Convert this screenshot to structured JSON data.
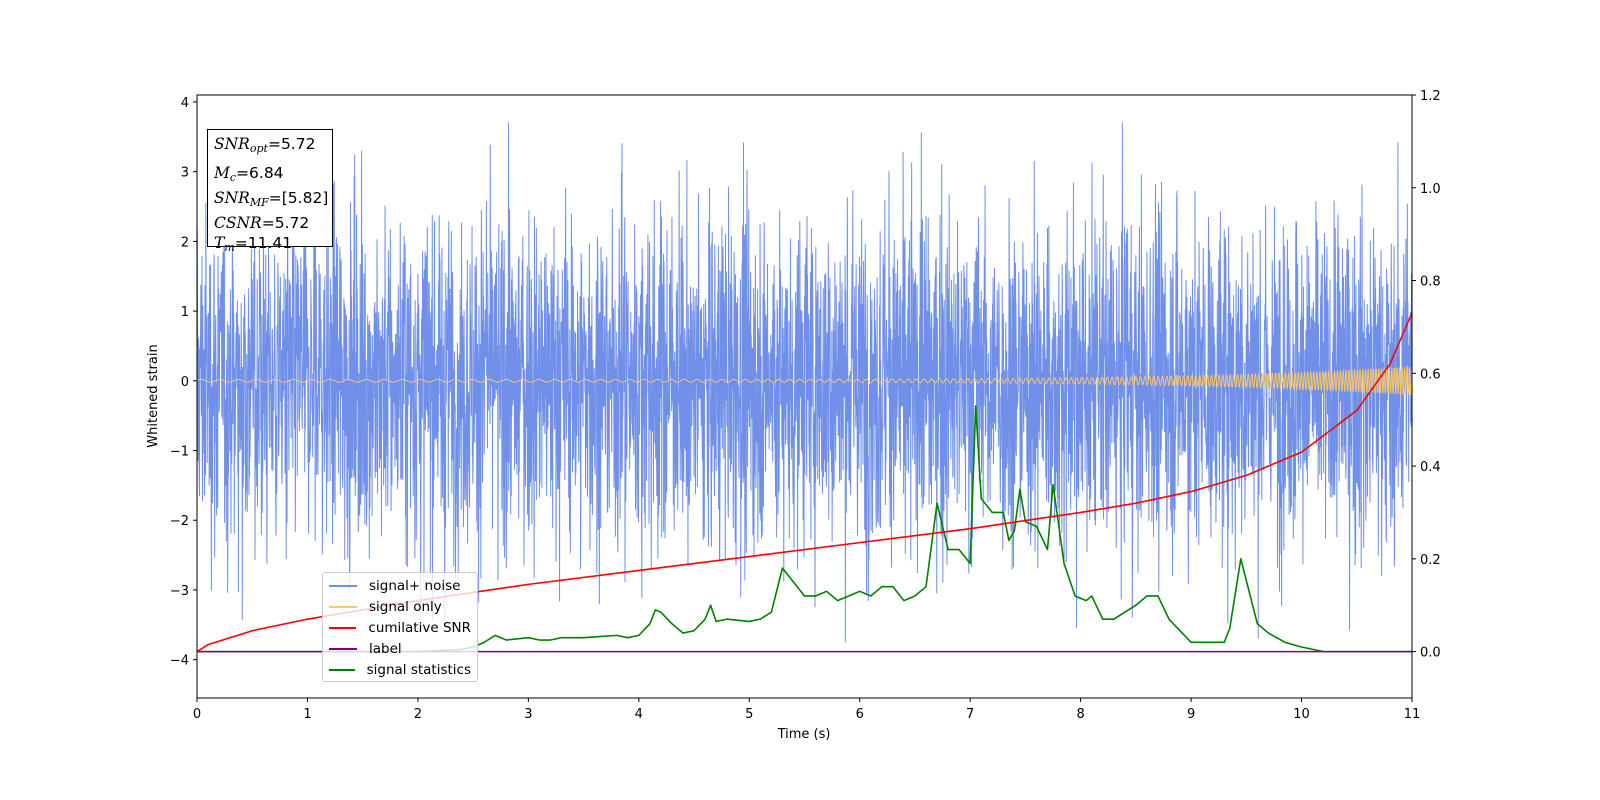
{
  "chart_data": {
    "type": "line",
    "title": "",
    "xlabel": "Time (s)",
    "ylabel": "Whitened strain",
    "xlim": [
      0,
      11
    ],
    "ylim": [
      -4.55,
      4.1
    ],
    "y2lim": [
      -0.1,
      1.2
    ],
    "grid": false,
    "legend_position": "lower-left",
    "x_ticks": [
      "0",
      "1",
      "2",
      "3",
      "4",
      "5",
      "6",
      "7",
      "8",
      "9",
      "10",
      "11"
    ],
    "y_ticks": [
      "4",
      "3",
      "2",
      "1",
      "0",
      "−1",
      "−2",
      "−3",
      "−4"
    ],
    "y_tick_values": [
      4,
      3,
      2,
      1,
      0,
      -1,
      -2,
      -3,
      -4
    ],
    "y2_ticks": [
      "1.2",
      "1.0",
      "0.8",
      "0.6",
      "0.4",
      "0.2",
      "0.0"
    ],
    "y2_tick_values": [
      1.2,
      1.0,
      0.8,
      0.6,
      0.4,
      0.2,
      0.0
    ],
    "annotation": {
      "snr_opt": {
        "label": "SNR",
        "sub": "opt",
        "value": "=5.72"
      },
      "mc": {
        "label": "M",
        "sub": "c",
        "value": "=6.84"
      },
      "snr_mf": {
        "label": "SNR",
        "sub": "MF",
        "value": "=[5.82]"
      },
      "csnr": {
        "label": "CSNR",
        "value": "=5.72"
      },
      "tm": {
        "label": "T",
        "sub": "m",
        "value": "=11.41"
      }
    },
    "series": [
      {
        "name": "signal+ noise",
        "color": "#6f8fe8",
        "axis": "left",
        "kind": "noise",
        "sample_rate_per_s": 400,
        "typical_range": [
          -2.6,
          2.6
        ],
        "extremes": [
          -4.15,
          3.7
        ]
      },
      {
        "name": "signal only",
        "color": "#ffc864",
        "axis": "left",
        "kind": "chirp",
        "amplitude_start": 0.02,
        "amplitude_end": 0.2,
        "freq_start_hz": 6,
        "freq_end_hz": 45
      },
      {
        "name": "cumilative SNR",
        "color": "#ff0000",
        "axis": "right",
        "x": [
          0,
          0.1,
          0.5,
          1,
          2,
          3,
          4,
          5,
          6,
          7,
          8,
          8.5,
          9,
          9.5,
          10,
          10.5,
          10.8,
          11
        ],
        "values": [
          0.0,
          0.015,
          0.045,
          0.07,
          0.11,
          0.145,
          0.175,
          0.205,
          0.235,
          0.265,
          0.3,
          0.32,
          0.345,
          0.38,
          0.43,
          0.52,
          0.62,
          0.73
        ]
      },
      {
        "name": "label",
        "color": "#800080",
        "axis": "right",
        "x": [
          0,
          11
        ],
        "values": [
          0,
          0
        ]
      },
      {
        "name": "signal statistics",
        "color": "#008000",
        "axis": "right",
        "x": [
          0,
          1,
          2,
          2.4,
          2.5,
          2.6,
          2.7,
          2.8,
          3,
          3.1,
          3.2,
          3.3,
          3.5,
          3.8,
          3.9,
          4,
          4.1,
          4.15,
          4.2,
          4.3,
          4.4,
          4.5,
          4.6,
          4.65,
          4.7,
          4.8,
          5,
          5.1,
          5.2,
          5.3,
          5.4,
          5.5,
          5.6,
          5.7,
          5.8,
          5.9,
          6.0,
          6.1,
          6.2,
          6.3,
          6.4,
          6.5,
          6.6,
          6.7,
          6.8,
          6.9,
          7.0,
          7.05,
          7.1,
          7.2,
          7.3,
          7.35,
          7.4,
          7.45,
          7.5,
          7.6,
          7.7,
          7.75,
          7.85,
          7.95,
          8.05,
          8.1,
          8.2,
          8.3,
          8.5,
          8.6,
          8.7,
          8.8,
          9,
          9.2,
          9.3,
          9.35,
          9.45,
          9.6,
          9.7,
          9.85,
          10,
          10.2,
          11
        ],
        "values": [
          0,
          0,
          0.0,
          0.005,
          0.01,
          0.02,
          0.035,
          0.025,
          0.03,
          0.025,
          0.025,
          0.03,
          0.03,
          0.035,
          0.03,
          0.035,
          0.06,
          0.09,
          0.085,
          0.06,
          0.04,
          0.045,
          0.07,
          0.1,
          0.065,
          0.07,
          0.065,
          0.07,
          0.085,
          0.18,
          0.15,
          0.12,
          0.12,
          0.13,
          0.11,
          0.12,
          0.13,
          0.12,
          0.14,
          0.14,
          0.11,
          0.12,
          0.14,
          0.32,
          0.22,
          0.22,
          0.19,
          0.53,
          0.33,
          0.3,
          0.3,
          0.24,
          0.26,
          0.35,
          0.28,
          0.27,
          0.22,
          0.36,
          0.19,
          0.12,
          0.11,
          0.12,
          0.07,
          0.07,
          0.1,
          0.12,
          0.12,
          0.07,
          0.02,
          0.02,
          0.02,
          0.05,
          0.2,
          0.06,
          0.04,
          0.02,
          0.01,
          0.0,
          0.0
        ]
      }
    ]
  }
}
